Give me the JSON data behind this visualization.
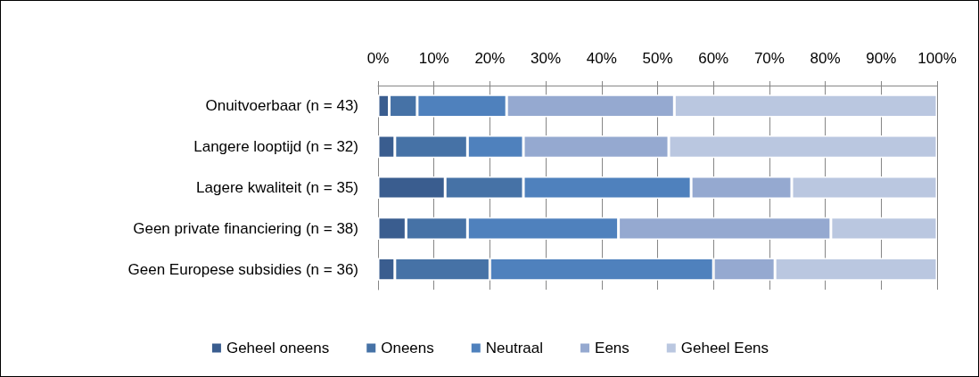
{
  "chart_data": {
    "type": "bar",
    "orientation": "horizontal",
    "stacked": true,
    "categories": [
      "Onuitvoerbaar (n = 43)",
      "Langere looptijd (n = 32)",
      "Lagere kwaliteit (n = 35)",
      "Geen private financiering (n = 38)",
      "Geen Europese subsidies (n = 36)"
    ],
    "series": [
      {
        "name": "Geheel oneens",
        "color": "#3a5d8f",
        "values": [
          2,
          3,
          12,
          5,
          3
        ]
      },
      {
        "name": "Oneens",
        "color": "#4672a6",
        "values": [
          5,
          13,
          14,
          11,
          17
        ]
      },
      {
        "name": "Neutraal",
        "color": "#4f81bd",
        "values": [
          16,
          10,
          30,
          27,
          40
        ]
      },
      {
        "name": "Eens",
        "color": "#95a9d0",
        "values": [
          30,
          26,
          18,
          38,
          11
        ]
      },
      {
        "name": "Geheel Eens",
        "color": "#bac7e0",
        "values": [
          47,
          48,
          26,
          19,
          29
        ]
      }
    ],
    "xlim": [
      0,
      100
    ],
    "xticks": [
      {
        "value": 0,
        "label": "0%"
      },
      {
        "value": 10,
        "label": "10%"
      },
      {
        "value": 20,
        "label": "20%"
      },
      {
        "value": 30,
        "label": "30%"
      },
      {
        "value": 40,
        "label": "40%"
      },
      {
        "value": 50,
        "label": "50%"
      },
      {
        "value": 60,
        "label": "60%"
      },
      {
        "value": 70,
        "label": "70%"
      },
      {
        "value": 80,
        "label": "80%"
      },
      {
        "value": 90,
        "label": "90%"
      },
      {
        "value": 100,
        "label": "100%"
      }
    ],
    "grid": "x",
    "legend": "bottom"
  }
}
